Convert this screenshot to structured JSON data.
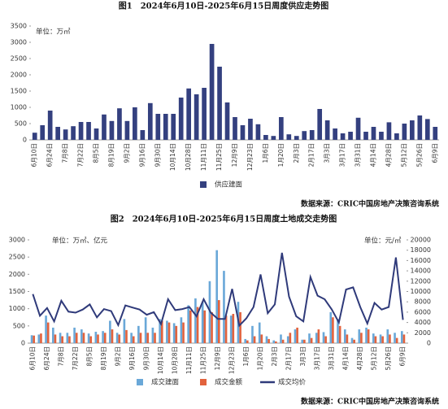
{
  "chart_data": [
    {
      "type": "bar",
      "title": "图1　2024年6月10日-2025年6月15日周度供应走势图",
      "y_label": "单位：万㎡",
      "source": "数据来源：CRIC中国房地产决策咨询系统",
      "categories": [
        "6月10日",
        null,
        "6月24日",
        null,
        "7月8日",
        null,
        "7月22日",
        null,
        "8月5日",
        null,
        "8月19日",
        null,
        "9月2日",
        null,
        "9月16日",
        null,
        "9月30日",
        null,
        "10月14日",
        null,
        "10月28日",
        null,
        "11月11日",
        null,
        "11月25日",
        null,
        "12月9日",
        null,
        "12月23日",
        null,
        "1月6日",
        null,
        "1月20日",
        null,
        "2月3日",
        null,
        "2月17日",
        null,
        "3月3日",
        null,
        "3月17日",
        null,
        "3月31日",
        null,
        "4月14日",
        null,
        "4月28日",
        null,
        "5月12日",
        null,
        "5月26日",
        null,
        "6月9日"
      ],
      "series": [
        {
          "name": "供应建面",
          "color": "#34407f",
          "values": [
            220,
            450,
            900,
            400,
            320,
            420,
            550,
            550,
            350,
            780,
            580,
            970,
            580,
            1000,
            300,
            1130,
            800,
            800,
            800,
            1300,
            1580,
            1400,
            1600,
            2950,
            2250,
            1150,
            700,
            450,
            650,
            480,
            150,
            120,
            700,
            170,
            120,
            270,
            300,
            950,
            600,
            350,
            200,
            250,
            680,
            250,
            400,
            250,
            540,
            200,
            500,
            600,
            750,
            640,
            400
          ]
        }
      ],
      "ylim": [
        0,
        3500
      ],
      "yticks": [
        0,
        500,
        1000,
        1500,
        2000,
        2500,
        3000,
        3500
      ],
      "grid": false
    },
    {
      "type": "bar-line",
      "title": "图2　2024年6月10日-2025年6月15日周度土地成交走势图",
      "y_label": "单位：万㎡、亿元",
      "y2_label": "单位：元/㎡",
      "source": "数据来源：CRIC中国房地产决策咨询系统",
      "categories": [
        "6月10日",
        null,
        "6月24日",
        null,
        "7月8日",
        null,
        "7月22日",
        null,
        "8月5日",
        null,
        "8月19日",
        null,
        "9月2日",
        null,
        "9月16日",
        null,
        "9月30日",
        null,
        "10月14日",
        null,
        "10月28日",
        null,
        "11月11日",
        null,
        "11月25日",
        null,
        "12月9日",
        null,
        "12月23日",
        null,
        "1月6日",
        null,
        "1月20日",
        null,
        "2月3日",
        null,
        "2月17日",
        null,
        "3月3日",
        null,
        "3月17日",
        null,
        "3月31日",
        null,
        "4月14日",
        null,
        "4月28日",
        null,
        "5月12日",
        null,
        "5月26日",
        null,
        "6月9日"
      ],
      "series": [
        {
          "name": "成交建面",
          "color": "#6aa8d8",
          "values": [
            230,
            250,
            800,
            450,
            300,
            300,
            450,
            400,
            280,
            330,
            350,
            650,
            300,
            700,
            300,
            500,
            750,
            450,
            700,
            650,
            580,
            750,
            1100,
            1300,
            1200,
            1800,
            2700,
            2100,
            800,
            1200,
            120,
            500,
            600,
            200,
            80,
            250,
            200,
            400,
            100,
            280,
            300,
            320,
            900,
            700,
            400,
            150,
            400,
            450,
            280,
            250,
            400,
            300,
            350
          ]
        },
        {
          "name": "成交金额",
          "color": "#e2623d",
          "values": [
            220,
            280,
            600,
            250,
            200,
            200,
            300,
            300,
            200,
            250,
            300,
            400,
            250,
            380,
            200,
            300,
            300,
            300,
            650,
            600,
            500,
            600,
            950,
            1050,
            950,
            900,
            1250,
            800,
            850,
            900,
            80,
            200,
            250,
            120,
            50,
            100,
            300,
            450,
            100,
            150,
            400,
            200,
            750,
            500,
            250,
            100,
            300,
            400,
            200,
            200,
            250,
            150,
            250
          ]
        },
        {
          "name": "成交均价",
          "color": "#2f3a7a",
          "axis": "y2",
          "values": [
            9500,
            5300,
            6800,
            4200,
            8200,
            6100,
            5900,
            6500,
            7500,
            5000,
            6600,
            6200,
            3500,
            7300,
            6900,
            6500,
            5500,
            6000,
            3700,
            8500,
            6400,
            6600,
            7000,
            5200,
            8500,
            5900,
            4700,
            4700,
            10500,
            3400,
            4800,
            7000,
            13300,
            5800,
            7500,
            17500,
            9000,
            5200,
            4200,
            12800,
            9200,
            8500,
            6500,
            4000,
            10400,
            10800,
            7000,
            3800,
            7800,
            6500,
            7000,
            16600,
            4500
          ]
        }
      ],
      "ylim": [
        0,
        3000
      ],
      "yticks": [
        0,
        500,
        1000,
        1500,
        2000,
        2500,
        3000
      ],
      "y2lim": [
        0,
        20000
      ],
      "y2ticks": [
        0,
        2000,
        4000,
        6000,
        8000,
        10000,
        12000,
        14000,
        16000,
        18000,
        20000
      ],
      "grid": false
    }
  ]
}
